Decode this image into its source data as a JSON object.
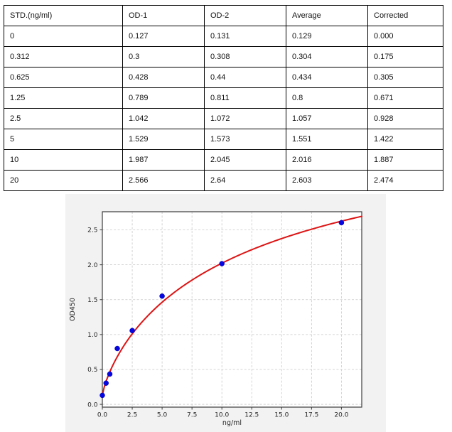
{
  "table": {
    "columns": [
      "STD.(ng/ml)",
      "OD-1",
      "OD-2",
      "Average",
      "Corrected"
    ],
    "rows": [
      [
        "0",
        "0.127",
        "0.131",
        "0.129",
        "0.000"
      ],
      [
        "0.312",
        "0.3",
        "0.308",
        "0.304",
        "0.175"
      ],
      [
        "0.625",
        "0.428",
        "0.44",
        "0.434",
        "0.305"
      ],
      [
        "1.25",
        "0.789",
        "0.811",
        "0.8",
        "0.671"
      ],
      [
        "2.5",
        "1.042",
        "1.072",
        "1.057",
        "0.928"
      ],
      [
        "5",
        "1.529",
        "1.573",
        "1.551",
        "1.422"
      ],
      [
        "10",
        "1.987",
        "2.045",
        "2.016",
        "1.887"
      ],
      [
        "20",
        "2.566",
        "2.64",
        "2.603",
        "2.474"
      ]
    ]
  },
  "chart_data": {
    "type": "scatter",
    "title": "",
    "xlabel": "ng/ml",
    "ylabel": "OD450",
    "x": [
      0,
      0.312,
      0.625,
      1.25,
      2.5,
      5,
      10,
      20
    ],
    "y": [
      0.129,
      0.304,
      0.434,
      0.8,
      1.057,
      1.551,
      2.016,
      2.603
    ],
    "series": [
      {
        "name": "standard-points",
        "style": "scatter",
        "color": "#0606e0"
      },
      {
        "name": "fitted-curve",
        "style": "line",
        "color": "#dd1414"
      }
    ],
    "curve_fit": {
      "model": "4pl",
      "a": 0.13,
      "b": 0.8,
      "c": 14,
      "d": 4.5
    },
    "xlim": [
      0,
      21.7
    ],
    "ylim": [
      -0.04,
      2.76
    ],
    "xticks": [
      0,
      2.5,
      5,
      7.5,
      10,
      12.5,
      15,
      17.5,
      20
    ],
    "xtick_labels": [
      "0.0",
      "2.5",
      "5.0",
      "7.5",
      "10.0",
      "12.5",
      "15.0",
      "17.5",
      "20.0"
    ],
    "yticks": [
      0,
      0.5,
      1,
      1.5,
      2,
      2.5
    ],
    "ytick_labels": [
      "0.0",
      "0.5",
      "1.0",
      "1.5",
      "2.0",
      "2.5"
    ],
    "grid": true,
    "grid_color": "#c9c9c9",
    "plot_bg": "#ffffff",
    "figure_bg": "#f2f2f2",
    "spine_color": "#3d3d3d",
    "point_color": "#0606e0",
    "curve_color": "#dd1414"
  }
}
